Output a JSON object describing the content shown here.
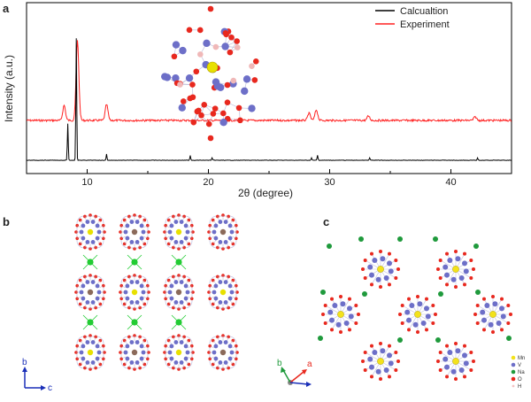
{
  "panels": {
    "a": "a",
    "b": "b",
    "c": "c"
  },
  "chart_data": {
    "type": "line",
    "xlabel": "2θ (degree)",
    "ylabel": "Intensity (a.u.)",
    "xlim": [
      5,
      45
    ],
    "xticks": [
      10,
      20,
      30,
      40
    ],
    "series": [
      {
        "name": "Calcualtion",
        "color": "#000000",
        "peaks": [
          {
            "x": 8.4,
            "y": 0.3
          },
          {
            "x": 9.1,
            "y": 1.0
          },
          {
            "x": 11.6,
            "y": 0.05
          },
          {
            "x": 18.5,
            "y": 0.04
          },
          {
            "x": 20.3,
            "y": 0.02
          },
          {
            "x": 28.5,
            "y": 0.02
          },
          {
            "x": 29.0,
            "y": 0.04
          },
          {
            "x": 33.3,
            "y": 0.02
          },
          {
            "x": 42.2,
            "y": 0.02
          }
        ]
      },
      {
        "name": "Experiment",
        "color": "#ff2020",
        "peaks": [
          {
            "x": 8.1,
            "y": 0.17
          },
          {
            "x": 9.2,
            "y": 0.9
          },
          {
            "x": 11.6,
            "y": 0.18
          },
          {
            "x": 28.3,
            "y": 0.08
          },
          {
            "x": 28.9,
            "y": 0.12
          },
          {
            "x": 33.2,
            "y": 0.05
          },
          {
            "x": 42.0,
            "y": 0.04
          }
        ]
      }
    ]
  },
  "panel_b": {
    "axes": {
      "up": "b",
      "right": "c"
    },
    "colors": {
      "red": "#e8281e",
      "blue": "#6d6fc8",
      "green": "#22cc33",
      "yellow": "#e8e000"
    }
  },
  "panel_c": {
    "axes": {
      "up": "b",
      "right": "a"
    },
    "legend": [
      {
        "label": "Mn",
        "color": "#f3e21b"
      },
      {
        "label": "V",
        "color": "#6d6fc8"
      },
      {
        "label": "Na",
        "color": "#1f9a3c"
      },
      {
        "label": "O",
        "color": "#e8281e"
      },
      {
        "label": "H",
        "color": "#f2c2c2"
      }
    ]
  }
}
